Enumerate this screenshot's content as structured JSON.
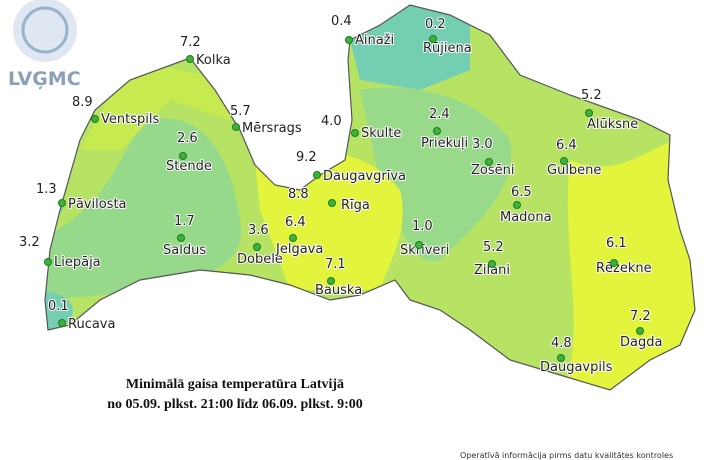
{
  "logo": "LVĢMC",
  "title": [
    "Minimālā gaisa temperatūra Latvijā",
    "no 05.09. plkst. 21:00 līdz 06.09. plkst. 9:00"
  ],
  "footnote": "Operatīvā informācija pirms datu kvalitātes kontroles",
  "stations": [
    {
      "name": "Ainaži",
      "value": "0.4"
    },
    {
      "name": "Rūjiena",
      "value": "0.2"
    },
    {
      "name": "Kolka",
      "value": "7.2"
    },
    {
      "name": "Ventspils",
      "value": "8.9"
    },
    {
      "name": "Mērsrags",
      "value": "5.7"
    },
    {
      "name": "Skulte",
      "value": "4.0"
    },
    {
      "name": "Priekuļi",
      "value": "2.4"
    },
    {
      "name": "Alūksne",
      "value": "5.2"
    },
    {
      "name": "Stende",
      "value": "2.6"
    },
    {
      "name": "Zosēni",
      "value": "3.0"
    },
    {
      "name": "Gulbene",
      "value": "6.4"
    },
    {
      "name": "Daugavgrīva",
      "value": "9.2"
    },
    {
      "name": "Pāvilosta",
      "value": "1.3"
    },
    {
      "name": "Rīga",
      "value": "8.8"
    },
    {
      "name": "Madona",
      "value": "6.5"
    },
    {
      "name": "Saldus",
      "value": "1.7"
    },
    {
      "name": "Dobele",
      "value": "3.6"
    },
    {
      "name": "Jelgava",
      "value": "6.4"
    },
    {
      "name": "Skrīveri",
      "value": "1.0"
    },
    {
      "name": "Zilani",
      "value": "5.2"
    },
    {
      "name": "Rēzekne",
      "value": "6.1"
    },
    {
      "name": "Liepāja",
      "value": "3.2"
    },
    {
      "name": "Bauska",
      "value": "7.1"
    },
    {
      "name": "Rucava",
      "value": "0.1"
    },
    {
      "name": "Daugavpils",
      "value": "4.8"
    },
    {
      "name": "Dagda",
      "value": "7.2"
    }
  ]
}
